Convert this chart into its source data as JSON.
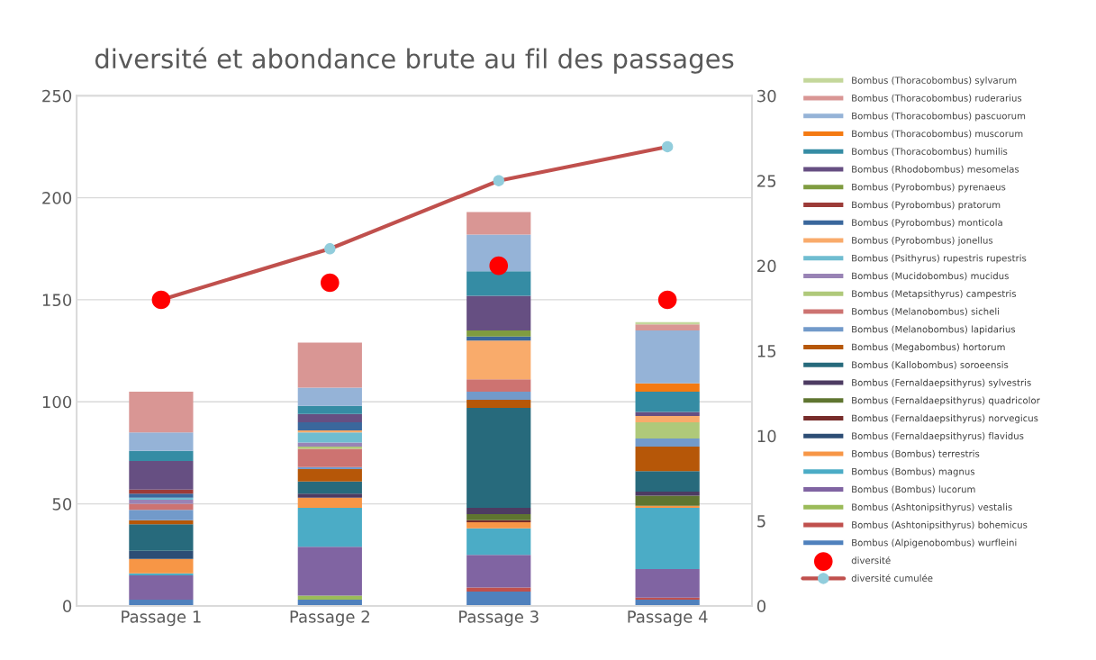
{
  "chart_data": {
    "type": "bar",
    "title": "diversité et abondance brute au fil des passages",
    "stacked": true,
    "grid": "y",
    "legend": "right",
    "categories": [
      "Passage 1",
      "Passage 2",
      "Passage 3",
      "Passage 4"
    ],
    "ylim": [
      0,
      250
    ],
    "yticks": [
      0,
      50,
      100,
      150,
      200,
      250
    ],
    "y2lim": [
      0,
      30
    ],
    "y2ticks": [
      0,
      5,
      10,
      15,
      20,
      25,
      30
    ],
    "series": [
      {
        "name": "Bombus (Alpigenobombus) wurfleini",
        "color": "#4f81bd",
        "values": [
          3,
          3,
          7,
          3
        ]
      },
      {
        "name": "Bombus (Ashtonipsithyrus) bohemicus",
        "color": "#c0504d",
        "values": [
          null,
          null,
          2,
          1
        ]
      },
      {
        "name": "Bombus (Ashtonipsithyrus) vestalis",
        "color": "#9bbb59",
        "values": [
          null,
          2,
          null,
          null
        ]
      },
      {
        "name": "Bombus (Bombus) lucorum",
        "color": "#8064a2",
        "values": [
          12,
          24,
          16,
          14
        ]
      },
      {
        "name": "Bombus (Bombus) magnus",
        "color": "#4bacc6",
        "values": [
          1,
          19,
          13,
          30
        ]
      },
      {
        "name": "Bombus (Bombus) terrestris",
        "color": "#f79646",
        "values": [
          7,
          5,
          3,
          1
        ]
      },
      {
        "name": "Bombus (Fernaldaepsithyrus) flavidus",
        "color": "#2c4d75",
        "values": [
          4,
          null,
          null,
          null
        ]
      },
      {
        "name": "Bombus (Fernaldaepsithyrus) norvegicus",
        "color": "#772c2a",
        "values": [
          null,
          null,
          1,
          null
        ]
      },
      {
        "name": "Bombus (Fernaldaepsithyrus) quadricolor",
        "color": "#5f7530",
        "values": [
          null,
          null,
          3,
          5
        ]
      },
      {
        "name": "Bombus (Fernaldaepsithyrus) sylvestris",
        "color": "#4d3b62",
        "values": [
          null,
          2,
          3,
          2
        ]
      },
      {
        "name": "Bombus (Kallobombus) soroeensis",
        "color": "#276a7c",
        "values": [
          13,
          6,
          49,
          10
        ]
      },
      {
        "name": "Bombus (Megabombus) hortorum",
        "color": "#b65708",
        "values": [
          2,
          6,
          4,
          12
        ]
      },
      {
        "name": "Bombus (Melanobombus) lapidarius",
        "color": "#729aca",
        "values": [
          5,
          1,
          4,
          4
        ]
      },
      {
        "name": "Bombus (Melanobombus) sicheli",
        "color": "#cd7371",
        "values": [
          3,
          9,
          6,
          null
        ]
      },
      {
        "name": "Bombus (Metapsithyrus) campestris",
        "color": "#afc97a",
        "values": [
          null,
          1,
          null,
          8
        ]
      },
      {
        "name": "Bombus (Mucidobombus) mucidus",
        "color": "#9983b5",
        "values": [
          2,
          2,
          null,
          null
        ]
      },
      {
        "name": "Bombus (Psithyrus) rupestris rupestris",
        "color": "#6fbdd1",
        "values": [
          1,
          5,
          null,
          null
        ]
      },
      {
        "name": "Bombus (Pyrobombus) jonellus",
        "color": "#f9ab6b",
        "values": [
          null,
          1,
          19,
          3
        ]
      },
      {
        "name": "Bombus (Pyrobombus) monticola",
        "color": "#3a679c",
        "values": [
          2,
          4,
          2,
          null
        ]
      },
      {
        "name": "Bombus (Pyrobombus) pratorum",
        "color": "#9c3b38",
        "values": [
          2,
          null,
          null,
          null
        ]
      },
      {
        "name": "Bombus (Pyrobombus) pyrenaeus",
        "color": "#7f9c40",
        "values": [
          null,
          null,
          3,
          null
        ]
      },
      {
        "name": "Bombus (Rhodobombus) mesomelas",
        "color": "#664f82",
        "values": [
          14,
          4,
          17,
          2
        ]
      },
      {
        "name": "Bombus (Thoracobombus) humilis",
        "color": "#358ca4",
        "values": [
          5,
          4,
          12,
          10
        ]
      },
      {
        "name": "Bombus (Thoracobombus) muscorum",
        "color": "#f47a12",
        "values": [
          null,
          null,
          null,
          4
        ]
      },
      {
        "name": "Bombus (Thoracobombus) pascuorum",
        "color": "#95b3d7",
        "values": [
          9,
          9,
          18,
          26
        ]
      },
      {
        "name": "Bombus (Thoracobombus) ruderarius",
        "color": "#d99694",
        "values": [
          20,
          22,
          11,
          3
        ]
      },
      {
        "name": "Bombus (Thoracobombus) sylvarum",
        "color": "#c4d79b",
        "values": [
          null,
          null,
          null,
          1
        ]
      },
      {
        "name": "diversité",
        "type": "scatter",
        "axis": "y2",
        "marker": "circle",
        "color": "#ff0000",
        "values": [
          18,
          19,
          20,
          18
        ]
      },
      {
        "name": "diversité cumulée",
        "type": "line",
        "axis": "y2",
        "marker": "circle",
        "color": "#c0504d",
        "colors": [
          "#92cddc",
          "#92cddc",
          "#92cddc",
          "#92cddc"
        ],
        "values": [
          18,
          21,
          25,
          27
        ]
      }
    ]
  }
}
